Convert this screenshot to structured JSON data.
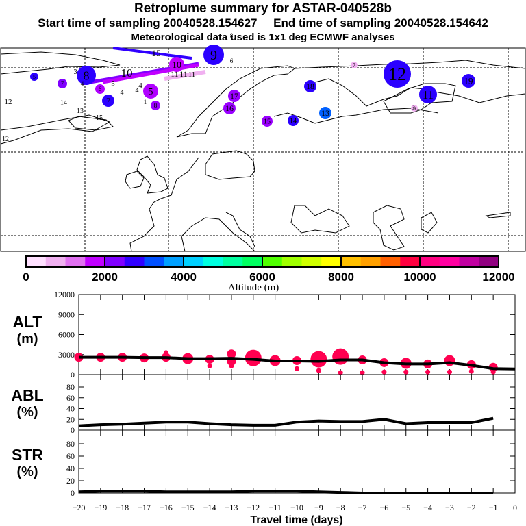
{
  "header": {
    "title": "Retroplume summary for ASTAR-040528b",
    "sampling_line": "Start time of sampling 20040528.154627     End time of sampling 20040528.154642",
    "met_line": "Meteorological data used is 1x1 deg ECMWF analyses"
  },
  "map": {
    "description": "Map of Europe / North Atlantic / Arctic with retroplume cluster centroids labelled by travel day",
    "clusters": [
      {
        "label": "9",
        "color": "#2b00ff",
        "size": "large",
        "region": "north-central"
      },
      {
        "label": "12",
        "color": "#2b00ff",
        "size": "large",
        "region": "north-east"
      },
      {
        "label": "8",
        "color": "#2b00ff",
        "size": "large",
        "region": "north-west"
      },
      {
        "label": "11",
        "color": "#2b00ff",
        "size": "medium",
        "region": "east"
      },
      {
        "label": "19",
        "color": "#2b00ff",
        "size": "small",
        "region": "far-east"
      },
      {
        "label": "18",
        "color": "#2b00ff",
        "size": "small",
        "region": "north-east"
      },
      {
        "label": "14",
        "color": "#2b00ff",
        "size": "small",
        "region": "east"
      },
      {
        "label": "13",
        "color": "#0060ff",
        "size": "small",
        "region": "east"
      },
      {
        "label": "17",
        "color": "#9a00ff",
        "size": "small",
        "region": "scandinavia"
      },
      {
        "label": "16",
        "color": "#9a00ff",
        "size": "small",
        "region": "scandinavia"
      },
      {
        "label": "15",
        "color": "#9a00ff",
        "size": "small",
        "region": "finland"
      },
      {
        "label": "7",
        "color": "#2b00ff",
        "size": "small",
        "region": "atlantic"
      },
      {
        "label": "5",
        "color": "#2b00ff",
        "size": "small",
        "region": "atlantic"
      },
      {
        "label": "7",
        "color": "#8000ff",
        "size": "small",
        "region": "atlantic"
      },
      {
        "label": "5",
        "color": "#b000ff",
        "size": "medium",
        "region": "norwegian-sea"
      },
      {
        "label": "6",
        "color": "#b000ff",
        "size": "small",
        "region": "atlantic"
      },
      {
        "label": "8",
        "color": "#9a00ff",
        "size": "small",
        "region": "norwegian-sea"
      },
      {
        "label": "10",
        "color": "#c000ff",
        "size": "small",
        "region": "kara-sea"
      },
      {
        "label": "7",
        "color": "#f0b0f0",
        "size": "small",
        "region": "siberia"
      },
      {
        "label": "9",
        "color": "#f0b0f0",
        "size": "small",
        "region": "siberia"
      }
    ],
    "text_labels": [
      "15",
      "10",
      "5",
      "4",
      "4",
      "4",
      "11",
      "11",
      "11",
      "14",
      "13",
      "12",
      "12",
      "9",
      "8",
      "6",
      "3",
      "4",
      "1",
      "15"
    ]
  },
  "colorbar": {
    "label": "Altitude (m)",
    "ticks": [
      "0",
      "2000",
      "4000",
      "6000",
      "8000",
      "10000",
      "12000"
    ],
    "colors": [
      "#ffe0ff",
      "#f0b0f0",
      "#e070f0",
      "#c000ff",
      "#8000ff",
      "#3000ff",
      "#0050ff",
      "#00a0ff",
      "#00d0ff",
      "#00ffe0",
      "#00ffa0",
      "#00ff60",
      "#50ff00",
      "#a0ff00",
      "#d0ff00",
      "#ffff00",
      "#ffc000",
      "#ffa000",
      "#ff6000",
      "#ff0040",
      "#ff0080",
      "#ff00a0",
      "#c000a0",
      "#900080"
    ]
  },
  "panels": {
    "alt": {
      "label_top": "ALT",
      "label_bottom": "(m)"
    },
    "abl": {
      "label_top": "ABL",
      "label_bottom": "(%)"
    },
    "str": {
      "label_top": "STR",
      "label_bottom": "(%)"
    }
  },
  "chart_data": [
    {
      "type": "line",
      "title": "ALT (m)",
      "xlabel": "Travel time (days)",
      "ylabel": "ALT (m)",
      "xlim": [
        -20,
        0
      ],
      "ylim": [
        0,
        12000
      ],
      "yticks": [
        "0",
        "3000",
        "6000",
        "9000",
        "12000"
      ],
      "x": [
        -20,
        -19,
        -18,
        -17,
        -16,
        -15,
        -14,
        -13,
        -12,
        -11,
        -10,
        -9,
        -8,
        -7,
        -6,
        -5,
        -4,
        -3,
        -2,
        -1,
        0
      ],
      "series": [
        {
          "name": "mean altitude",
          "values": [
            2600,
            2600,
            2600,
            2550,
            2550,
            2400,
            2400,
            2450,
            2300,
            2050,
            2050,
            2000,
            2200,
            2200,
            1800,
            1600,
            1600,
            1800,
            1400,
            900,
            850
          ]
        }
      ],
      "clusters": [
        {
          "x": -20,
          "y": 2600,
          "size": "small"
        },
        {
          "x": -19,
          "y": 2600,
          "size": "small"
        },
        {
          "x": -18,
          "y": 2600,
          "size": "small"
        },
        {
          "x": -17,
          "y": 2500,
          "size": "small"
        },
        {
          "x": -16,
          "y": 2600,
          "size": "small"
        },
        {
          "x": -16,
          "y": 3300,
          "size": "tiny"
        },
        {
          "x": -15,
          "y": 2400,
          "size": "medium"
        },
        {
          "x": -14,
          "y": 2300,
          "size": "small"
        },
        {
          "x": -14,
          "y": 1300,
          "size": "tiny"
        },
        {
          "x": -13,
          "y": 3100,
          "size": "small"
        },
        {
          "x": -13,
          "y": 2000,
          "size": "small"
        },
        {
          "x": -13,
          "y": 1300,
          "size": "tiny"
        },
        {
          "x": -12,
          "y": 2500,
          "size": "large"
        },
        {
          "x": -11,
          "y": 2100,
          "size": "medium"
        },
        {
          "x": -10,
          "y": 2100,
          "size": "small"
        },
        {
          "x": -10,
          "y": 900,
          "size": "tiny"
        },
        {
          "x": -9,
          "y": 2300,
          "size": "large"
        },
        {
          "x": -9,
          "y": 600,
          "size": "tiny"
        },
        {
          "x": -8,
          "y": 2700,
          "size": "large"
        },
        {
          "x": -8,
          "y": 300,
          "size": "tiny"
        },
        {
          "x": -7,
          "y": 2200,
          "size": "small"
        },
        {
          "x": -7,
          "y": 300,
          "size": "tiny"
        },
        {
          "x": -6,
          "y": 1800,
          "size": "small"
        },
        {
          "x": -6,
          "y": 400,
          "size": "tiny"
        },
        {
          "x": -5,
          "y": 1700,
          "size": "medium"
        },
        {
          "x": -5,
          "y": 400,
          "size": "tiny"
        },
        {
          "x": -4,
          "y": 1600,
          "size": "small"
        },
        {
          "x": -4,
          "y": 400,
          "size": "tiny"
        },
        {
          "x": -3,
          "y": 2100,
          "size": "medium"
        },
        {
          "x": -3,
          "y": 400,
          "size": "tiny"
        },
        {
          "x": -2,
          "y": 1500,
          "size": "small"
        },
        {
          "x": -2,
          "y": 500,
          "size": "tiny"
        },
        {
          "x": -1,
          "y": 1100,
          "size": "small"
        },
        {
          "x": -1,
          "y": 400,
          "size": "tiny"
        }
      ],
      "marker_color": "#ff0050"
    },
    {
      "type": "line",
      "title": "ABL (%)",
      "xlim": [
        -20,
        0
      ],
      "ylim": [
        0,
        100
      ],
      "yticks": [
        "0",
        "20",
        "40",
        "60",
        "80"
      ],
      "x": [
        -20,
        -19,
        -18,
        -17,
        -16,
        -15,
        -14,
        -13,
        -12,
        -11,
        -10,
        -9,
        -8,
        -7,
        -6,
        -5,
        -4,
        -3,
        -2,
        -1
      ],
      "series": [
        {
          "name": "ABL fraction",
          "values": [
            8,
            10,
            11,
            13,
            15,
            15,
            12,
            10,
            9,
            9,
            15,
            17,
            16,
            16,
            20,
            12,
            14,
            14,
            14,
            22
          ]
        }
      ]
    },
    {
      "type": "line",
      "title": "STR (%)",
      "xlabel": "Travel time (days)",
      "xlim": [
        -20,
        0
      ],
      "ylim": [
        0,
        100
      ],
      "yticks": [
        "0",
        "20",
        "40",
        "60",
        "80"
      ],
      "xticks": [
        "-20",
        "-19",
        "-18",
        "-17",
        "-16",
        "-15",
        "-14",
        "-13",
        "-12",
        "-11",
        "-10",
        "-9",
        "-8",
        "-7",
        "-6",
        "-5",
        "-4",
        "-3",
        "-2",
        "-1",
        "0"
      ],
      "x": [
        -20,
        -19,
        -18,
        -17,
        -16,
        -15,
        -14,
        -13,
        -12,
        -11,
        -10,
        -9,
        -8,
        -7,
        -6,
        -5,
        -4,
        -3,
        -2,
        -1
      ],
      "series": [
        {
          "name": "stratospheric fraction",
          "values": [
            2,
            3,
            3,
            3,
            2,
            2,
            2,
            2,
            3,
            3,
            3,
            2,
            1,
            0,
            0,
            0,
            0,
            0,
            0,
            0
          ]
        }
      ]
    }
  ]
}
